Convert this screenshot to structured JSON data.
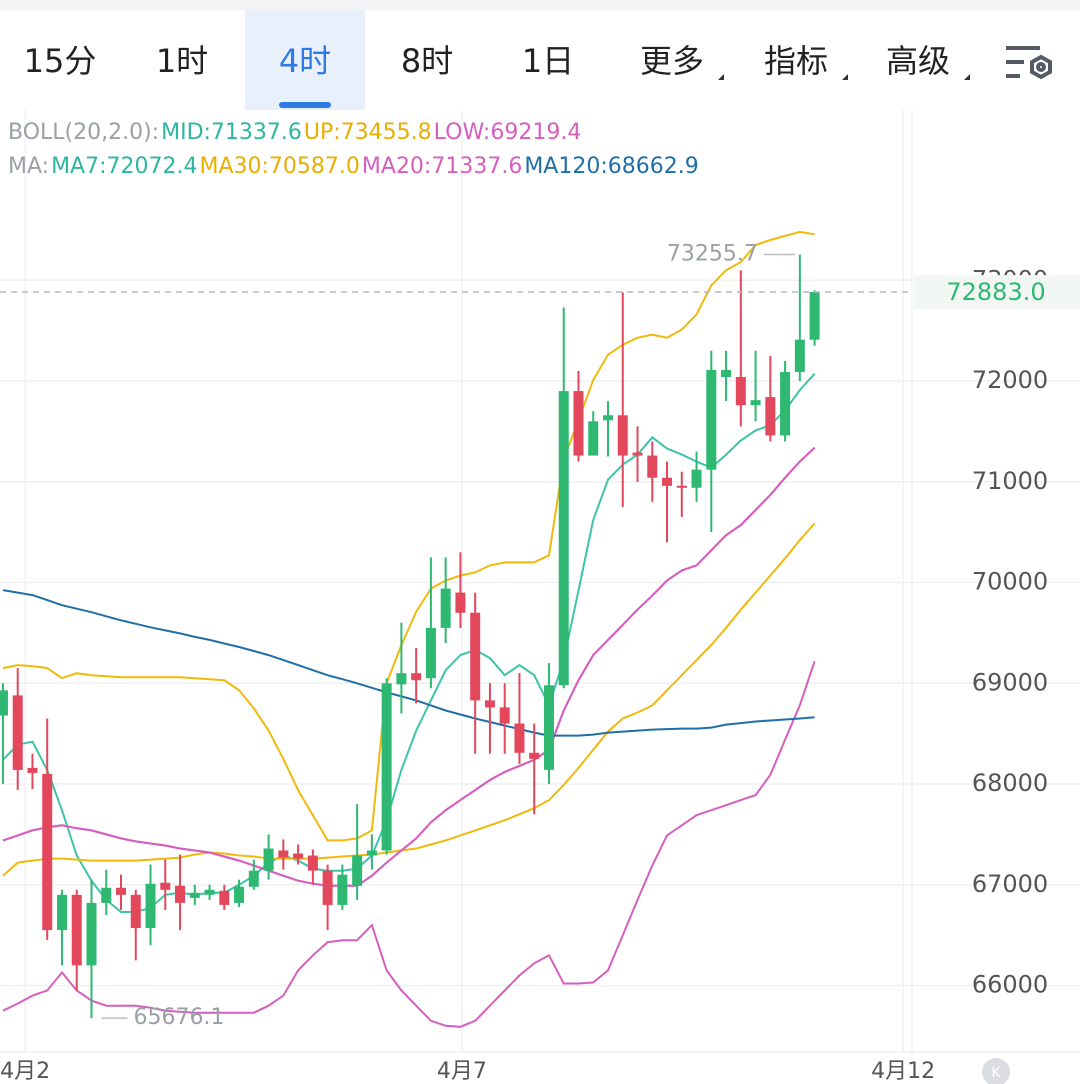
{
  "tabs": [
    {
      "label": "15分"
    },
    {
      "label": "1时"
    },
    {
      "label": "4时",
      "selected": true
    },
    {
      "label": "8时"
    },
    {
      "label": "1日"
    },
    {
      "label": "更多",
      "dropdown": true
    },
    {
      "label": "指标",
      "dropdown": true
    },
    {
      "label": "高级",
      "dropdown": true
    }
  ],
  "badge": "K",
  "chart_data": {
    "type": "candlestick",
    "up_color": "#2eb872",
    "down_color": "#e2475b",
    "grid": true,
    "xlim": [
      -0.2,
      61.6
    ],
    "xticks": [
      {
        "value": 1.5,
        "label": "4月2"
      },
      {
        "value": 31.1,
        "label": "4月7"
      },
      {
        "value": 61.0,
        "label": "4月12"
      }
    ],
    "ylim": [
      65340,
      74690
    ],
    "yticks": [
      66000,
      67000,
      68000,
      69000,
      70000,
      71000,
      72000,
      73000
    ],
    "x": [
      0,
      1,
      2,
      3,
      4,
      5,
      6,
      7,
      8,
      9,
      10,
      11,
      12,
      13,
      14,
      15,
      16,
      17,
      18,
      19,
      20,
      21,
      22,
      23,
      24,
      25,
      26,
      27,
      28,
      29,
      30,
      31,
      32,
      33,
      34,
      35,
      36,
      37,
      38,
      39,
      40,
      41,
      42,
      43,
      44,
      45,
      46,
      47,
      48,
      49,
      50,
      51,
      52,
      53,
      54,
      55
    ],
    "open": [
      68680,
      68880,
      68160,
      68100,
      66550,
      66900,
      66200,
      66820,
      66970,
      66900,
      66570,
      67020,
      66990,
      66870,
      66900,
      66940,
      66820,
      66980,
      67140,
      67340,
      67310,
      67290,
      67140,
      66800,
      66990,
      67290,
      67340,
      68990,
      69100,
      69050,
      69550,
      69900,
      69700,
      68830,
      68760,
      68600,
      68310,
      68140,
      68980,
      71900,
      71260,
      71610,
      71660,
      71290,
      71260,
      71040,
      70960,
      70940,
      71120,
      72040,
      72040,
      71760,
      71840,
      71460,
      72090,
      72410
    ],
    "high": [
      69000,
      69150,
      68300,
      68650,
      66950,
      66950,
      67050,
      67150,
      67100,
      66950,
      67200,
      67250,
      67300,
      67000,
      67000,
      67000,
      67050,
      67250,
      67500,
      67450,
      67400,
      67350,
      67200,
      67200,
      67800,
      67500,
      69050,
      69600,
      69350,
      70250,
      70250,
      70300,
      69900,
      69000,
      69000,
      69100,
      68600,
      69200,
      72730,
      72100,
      71700,
      71800,
      72880,
      71550,
      71400,
      71200,
      71100,
      71300,
      72300,
      72300,
      73100,
      72300,
      72250,
      72200,
      73255.7,
      72900
    ],
    "low": [
      68000,
      67940,
      67950,
      66450,
      66200,
      65950,
      65676.1,
      66700,
      66750,
      66250,
      66400,
      66750,
      66550,
      66800,
      66850,
      66750,
      66780,
      66950,
      67050,
      67150,
      67200,
      67000,
      66550,
      66750,
      66850,
      67150,
      67300,
      68700,
      68800,
      68950,
      69400,
      69550,
      68300,
      68300,
      68300,
      68200,
      67700,
      68000,
      68950,
      71200,
      71300,
      71250,
      70750,
      71000,
      70800,
      70400,
      70650,
      70800,
      70500,
      71800,
      71550,
      71600,
      71400,
      71400,
      72000,
      72350
    ],
    "close": [
      68930,
      68140,
      68110,
      66550,
      66900,
      66200,
      66820,
      66970,
      66900,
      66570,
      67010,
      66950,
      66820,
      66920,
      66950,
      66800,
      66980,
      67140,
      67360,
      67270,
      67260,
      67140,
      66800,
      67100,
      67290,
      67340,
      69000,
      69100,
      69030,
      69550,
      69940,
      69700,
      68830,
      68760,
      68600,
      68310,
      68250,
      68980,
      71900,
      71260,
      71600,
      71660,
      71260,
      71260,
      71040,
      70960,
      70940,
      71120,
      72110,
      72110,
      71760,
      71810,
      71460,
      72090,
      72410,
      72883
    ],
    "current_price": {
      "value": 72883,
      "label": "72883.0"
    },
    "annotations": [
      {
        "label": "73255.7",
        "x": 54,
        "y": 73255.7,
        "side": "left"
      },
      {
        "label": "65676.1",
        "x": 6,
        "y": 65676.1,
        "side": "right"
      }
    ],
    "indicators": [
      {
        "title": "BOLL(20,2.0):",
        "series": [
          {
            "label": "MID:71337.6",
            "color": "#d65fbd",
            "text_color": "#2db6a0",
            "values": [
              67440,
              67490,
              67540,
              67570,
              67590,
              67560,
              67540,
              67500,
              67460,
              67430,
              67410,
              67390,
              67360,
              67340,
              67320,
              67280,
              67240,
              67190,
              67140,
              67090,
              67040,
              67010,
              66990,
              66990,
              66990,
              67090,
              67220,
              67340,
              67460,
              67620,
              67740,
              67840,
              67940,
              68040,
              68120,
              68180,
              68240,
              68340,
              68730,
              69030,
              69280,
              69430,
              69580,
              69730,
              69870,
              70020,
              70120,
              70170,
              70320,
              70470,
              70570,
              70720,
              70870,
              71040,
              71200,
              71337.6
            ]
          },
          {
            "label": "UP:73455.8",
            "color": "#f0b90b",
            "text_color": "#e9ae00",
            "values": [
              69150,
              69180,
              69170,
              69150,
              69050,
              69100,
              69080,
              69070,
              69060,
              69060,
              69060,
              69060,
              69060,
              69050,
              69040,
              69030,
              68930,
              68750,
              68530,
              68250,
              67940,
              67690,
              67440,
              67440,
              67460,
              67540,
              69000,
              69380,
              69710,
              69940,
              70020,
              70070,
              70100,
              70170,
              70200,
              70200,
              70200,
              70270,
              71220,
              71610,
              72010,
              72260,
              72360,
              72430,
              72460,
              72430,
              72510,
              72660,
              72950,
              73100,
              73180,
              73350,
              73400,
              73440,
              73480,
              73455.8
            ]
          },
          {
            "label": "LOW:69219.4",
            "color": "#d65fbd",
            "text_color": "#d65fbd",
            "values": [
              65750,
              65820,
              65900,
              65950,
              66130,
              65950,
              65850,
              65800,
              65800,
              65800,
              65780,
              65750,
              65740,
              65730,
              65730,
              65730,
              65730,
              65730,
              65800,
              65900,
              66150,
              66300,
              66430,
              66450,
              66450,
              66600,
              66150,
              65950,
              65800,
              65650,
              65600,
              65590,
              65650,
              65800,
              65950,
              66100,
              66220,
              66300,
              66020,
              66020,
              66030,
              66150,
              66500,
              66850,
              67190,
              67490,
              67590,
              67690,
              67740,
              67790,
              67840,
              67890,
              68090,
              68440,
              68780,
              69219.4
            ]
          }
        ]
      },
      {
        "title": "MA:",
        "series": [
          {
            "label": "MA7:72072.4",
            "color": "#3cc3a8",
            "text_color": "#2db6a0",
            "values": [
              68240,
              68390,
              68420,
              68140,
              67740,
              67290,
              67040,
              66850,
              66730,
              66730,
              66770,
              66900,
              66920,
              66900,
              66920,
              66920,
              67000,
              67090,
              67220,
              67290,
              67240,
              67160,
              67140,
              67140,
              67160,
              67290,
              67640,
              68140,
              68530,
              68830,
              69130,
              69280,
              69330,
              69250,
              69080,
              69180,
              69080,
              68780,
              69230,
              69920,
              70620,
              71020,
              71170,
              71270,
              71440,
              71330,
              71270,
              71200,
              71140,
              71270,
              71410,
              71510,
              71560,
              71710,
              71910,
              72072.4
            ]
          },
          {
            "label": "MA30:70587.0",
            "color": "#f0b90b",
            "text_color": "#e9ae00",
            "values": [
              67090,
              67220,
              67240,
              67260,
              67260,
              67250,
              67240,
              67240,
              67240,
              67240,
              67250,
              67260,
              67270,
              67300,
              67320,
              67310,
              67290,
              67280,
              67260,
              67260,
              67260,
              67260,
              67270,
              67280,
              67290,
              67300,
              67320,
              67340,
              67360,
              67400,
              67440,
              67490,
              67540,
              67590,
              67640,
              67700,
              67760,
              67840,
              67990,
              68160,
              68340,
              68520,
              68650,
              68710,
              68780,
              68930,
              69080,
              69230,
              69380,
              69550,
              69730,
              69900,
              70070,
              70240,
              70420,
              70587.0
            ]
          },
          {
            "label": "MA20:71337.6",
            "color": "#d65fbd",
            "text_color": "#d65fbd",
            "values": [
              67440,
              67490,
              67540,
              67570,
              67590,
              67560,
              67540,
              67500,
              67460,
              67430,
              67410,
              67390,
              67360,
              67340,
              67320,
              67280,
              67240,
              67190,
              67140,
              67090,
              67040,
              67010,
              66990,
              66990,
              66990,
              67090,
              67220,
              67340,
              67460,
              67620,
              67740,
              67840,
              67940,
              68040,
              68120,
              68180,
              68240,
              68340,
              68730,
              69030,
              69280,
              69430,
              69580,
              69730,
              69870,
              70020,
              70120,
              70170,
              70320,
              70470,
              70570,
              70720,
              70870,
              71040,
              71200,
              71337.6
            ]
          },
          {
            "label": "MA120:68662.9",
            "color": "#1f6fa8",
            "text_color": "#1f6fa8",
            "values": [
              69925,
              69900,
              69875,
              69825,
              69775,
              69740,
              69705,
              69665,
              69625,
              69590,
              69555,
              69525,
              69495,
              69460,
              69430,
              69395,
              69360,
              69320,
              69280,
              69230,
              69180,
              69130,
              69080,
              69040,
              69000,
              68955,
              68910,
              68870,
              68830,
              68780,
              68730,
              68690,
              68650,
              68615,
              68580,
              68545,
              68510,
              68480,
              68480,
              68480,
              68490,
              68510,
              68520,
              68530,
              68540,
              68545,
              68550,
              68550,
              68560,
              68590,
              68605,
              68620,
              68630,
              68640,
              68650,
              68662.9
            ]
          }
        ]
      }
    ]
  }
}
